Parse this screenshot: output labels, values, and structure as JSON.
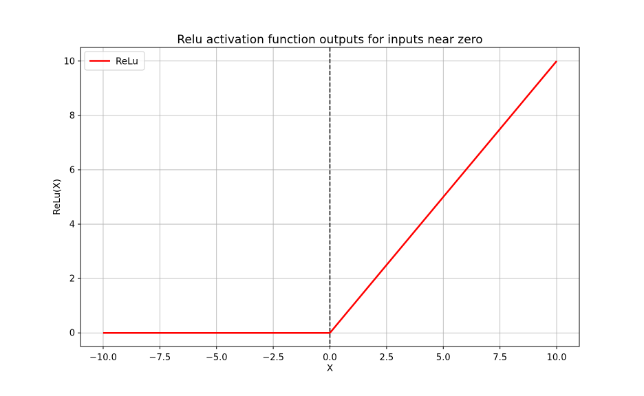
{
  "chart_data": {
    "type": "line",
    "title": "Relu activation function outputs for inputs near zero",
    "xlabel": "X",
    "ylabel": "ReLu(X)",
    "xlim": [
      -11,
      11
    ],
    "ylim": [
      -0.5,
      10.5
    ],
    "x_ticks": [
      -10.0,
      -7.5,
      -5.0,
      -2.5,
      0.0,
      2.5,
      5.0,
      7.5,
      10.0
    ],
    "x_tick_labels": [
      "−10.0",
      "−7.5",
      "−5.0",
      "−2.5",
      "0.0",
      "2.5",
      "5.0",
      "7.5",
      "10.0"
    ],
    "y_ticks": [
      0,
      2,
      4,
      6,
      8,
      10
    ],
    "y_tick_labels": [
      "0",
      "2",
      "4",
      "6",
      "8",
      "10"
    ],
    "grid": true,
    "legend_position": "top-left",
    "series": [
      {
        "name": "ReLu",
        "color": "#ff0000",
        "x": [
          -10,
          -7.5,
          -5,
          -2.5,
          -0.1,
          0,
          0.1,
          2.5,
          5,
          7.5,
          10
        ],
        "y": [
          0,
          0,
          0,
          0,
          0,
          0,
          0.1,
          2.5,
          5,
          7.5,
          10
        ]
      }
    ],
    "reference_lines": [
      {
        "orientation": "vertical",
        "x": 0,
        "color": "#000000",
        "style": "dashed"
      }
    ]
  }
}
